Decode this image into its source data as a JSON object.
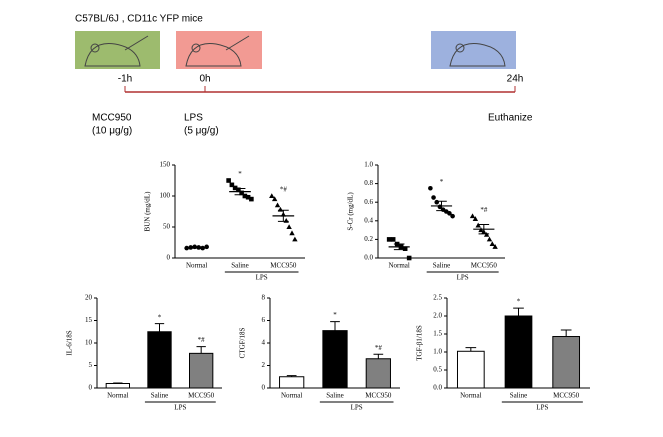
{
  "timeline": {
    "title": "C57BL/6J , CD11c YFP mice",
    "events": [
      {
        "time": "-1h",
        "labels": [
          "MCC950",
          "(10 μg/g)"
        ]
      },
      {
        "time": "0h",
        "labels": [
          "LPS",
          "(5 μg/g)"
        ]
      },
      {
        "time": "24h",
        "labels": [
          "Euthanize"
        ]
      }
    ]
  },
  "chart_data": [
    {
      "type": "dot",
      "ylabel": "BUN (mg/dL)",
      "categories": [
        "Normal",
        "Saline",
        "MCC950"
      ],
      "group_label": "LPS",
      "markers": [
        "circle",
        "square",
        "triangle"
      ],
      "points": [
        [
          16,
          17,
          18,
          17,
          16,
          18
        ],
        [
          125,
          118,
          113,
          110,
          105,
          100,
          98,
          95
        ],
        [
          100,
          95,
          85,
          78,
          70,
          60,
          50,
          40,
          30
        ]
      ],
      "means": [
        17,
        107,
        68
      ],
      "errors": [
        1,
        5,
        9
      ],
      "annotations": [
        null,
        "*",
        "*#"
      ],
      "ylim": [
        0,
        150
      ],
      "yticks": [
        0,
        50,
        100,
        150
      ]
    },
    {
      "type": "dot",
      "ylabel": "S-Cr (mg/dL)",
      "categories": [
        "Normal",
        "Saline",
        "MCC950"
      ],
      "group_label": "LPS",
      "markers": [
        "square",
        "circle",
        "triangle"
      ],
      "points": [
        [
          0.2,
          0.2,
          0.15,
          0.12,
          0.1,
          0.0
        ],
        [
          0.75,
          0.65,
          0.6,
          0.55,
          0.52,
          0.5,
          0.48,
          0.45
        ],
        [
          0.45,
          0.42,
          0.35,
          0.3,
          0.28,
          0.25,
          0.2,
          0.15,
          0.12
        ]
      ],
      "means": [
        0.12,
        0.56,
        0.31
      ],
      "errors": [
        0.03,
        0.05,
        0.05
      ],
      "annotations": [
        null,
        "*",
        "*#"
      ],
      "ylim": [
        0,
        1
      ],
      "yticks": [
        {
          "value": 0,
          "label": "0.0"
        },
        0.2,
        0.4,
        0.6,
        0.8,
        {
          "value": 1,
          "label": "1.0"
        }
      ]
    },
    {
      "type": "bar",
      "ylabel": "IL-6/18S",
      "categories": [
        "Normal",
        "Saline",
        "MCC950"
      ],
      "group_label": "LPS",
      "colors": [
        "#ffffff",
        "#000000",
        "#808080"
      ],
      "values": [
        1,
        12.5,
        7.7
      ],
      "errors": [
        0.1,
        1.8,
        1.5
      ],
      "annotations": [
        null,
        "*",
        "*#"
      ],
      "ylim": [
        0,
        20
      ],
      "yticks": [
        0,
        5,
        10,
        15,
        20
      ]
    },
    {
      "type": "bar",
      "ylabel": "CTGF/18S",
      "categories": [
        "Normal",
        "Saline",
        "MCC950"
      ],
      "group_label": "LPS",
      "colors": [
        "#ffffff",
        "#000000",
        "#808080"
      ],
      "values": [
        1,
        5.1,
        2.6
      ],
      "errors": [
        0.1,
        0.8,
        0.4
      ],
      "annotations": [
        null,
        "*",
        "*#"
      ],
      "ylim": [
        0,
        8
      ],
      "yticks": [
        0,
        2,
        4,
        6,
        8
      ]
    },
    {
      "type": "bar",
      "ylabel": "TGF-β1/18S",
      "categories": [
        "Normal",
        "Saline",
        "MCC950"
      ],
      "group_label": "LPS",
      "colors": [
        "#ffffff",
        "#000000",
        "#808080"
      ],
      "values": [
        1.02,
        2.0,
        1.43
      ],
      "errors": [
        0.1,
        0.22,
        0.18
      ],
      "annotations": [
        null,
        "*",
        null
      ],
      "ylim": [
        0,
        2.5
      ],
      "yticks": [
        {
          "value": 0,
          "label": "0.0"
        },
        0.5,
        {
          "value": 1,
          "label": "1.0"
        },
        1.5,
        {
          "value": 2,
          "label": "2.0"
        },
        2.5
      ]
    }
  ]
}
